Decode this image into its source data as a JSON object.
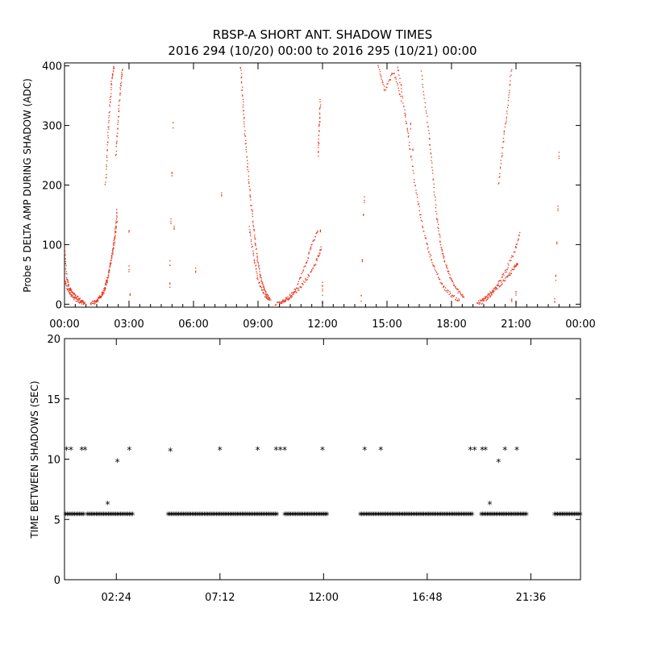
{
  "title_line1": "RBSP-A SHORT ANT. SHADOW TIMES",
  "title_line2": "2016 294 (10/20) 00:00 to 2016 295 (10/21) 00:00",
  "colors": {
    "top_series": "#e8341c",
    "bottom_series": "#000000",
    "axes": "#000000",
    "background": "#ffffff"
  },
  "chart_data": [
    {
      "type": "scatter",
      "title": "",
      "ylabel": "Probe 5 DELTA AMP DURING SHADOW (ADC)",
      "xlabel": "",
      "xlim": [
        0,
        24
      ],
      "ylim": [
        -5,
        405
      ],
      "yticks": [
        0,
        100,
        200,
        300,
        400
      ],
      "xticks": [
        0,
        3,
        6,
        9,
        12,
        15,
        18,
        21,
        24
      ],
      "xtick_labels": [
        "00:00",
        "03:00",
        "06:00",
        "09:00",
        "12:00",
        "15:00",
        "18:00",
        "21:00",
        "00:00"
      ],
      "series": [
        {
          "name": "delta amp",
          "segments": [
            [
              [
                0.0,
                95
              ],
              [
                0.1,
                45
              ],
              [
                0.2,
                30
              ],
              [
                0.35,
                20
              ],
              [
                0.55,
                12
              ],
              [
                0.8,
                5
              ],
              [
                0.95,
                2
              ]
            ],
            [
              [
                0.0,
                40
              ],
              [
                0.15,
                25
              ],
              [
                0.35,
                12
              ],
              [
                0.6,
                6
              ],
              [
                0.9,
                2
              ]
            ],
            [
              [
                1.2,
                1
              ],
              [
                1.5,
                5
              ],
              [
                1.8,
                18
              ],
              [
                2.0,
                40
              ],
              [
                2.2,
                80
              ],
              [
                2.35,
                120
              ],
              [
                2.45,
                160
              ]
            ],
            [
              [
                1.4,
                3
              ],
              [
                1.7,
                15
              ],
              [
                1.9,
                30
              ],
              [
                2.1,
                60
              ],
              [
                2.3,
                100
              ],
              [
                2.45,
                140
              ]
            ],
            [
              [
                1.9,
                200
              ],
              [
                2.0,
                270
              ],
              [
                2.1,
                330
              ],
              [
                2.2,
                380
              ],
              [
                2.3,
                400
              ]
            ],
            [
              [
                2.4,
                250
              ],
              [
                2.5,
                310
              ],
              [
                2.6,
                360
              ],
              [
                2.7,
                400
              ]
            ],
            [
              [
                8.2,
                400
              ],
              [
                8.3,
                340
              ],
              [
                8.4,
                280
              ],
              [
                8.55,
                220
              ],
              [
                8.7,
                160
              ],
              [
                8.85,
                110
              ],
              [
                9.0,
                70
              ],
              [
                9.15,
                40
              ],
              [
                9.35,
                20
              ],
              [
                9.55,
                8
              ]
            ],
            [
              [
                8.6,
                130
              ],
              [
                8.8,
                80
              ],
              [
                9.0,
                40
              ],
              [
                9.3,
                15
              ],
              [
                9.6,
                5
              ]
            ],
            [
              [
                9.8,
                1
              ],
              [
                10.2,
                5
              ],
              [
                10.6,
                15
              ],
              [
                11.0,
                30
              ],
              [
                11.4,
                50
              ],
              [
                11.75,
                75
              ],
              [
                11.95,
                95
              ]
            ],
            [
              [
                10.0,
                2
              ],
              [
                10.4,
                10
              ],
              [
                10.8,
                30
              ],
              [
                11.2,
                65
              ],
              [
                11.5,
                100
              ],
              [
                11.8,
                125
              ]
            ],
            [
              [
                11.8,
                250
              ],
              [
                11.85,
                300
              ],
              [
                11.9,
                345
              ]
            ],
            [
              [
                15.5,
                400
              ],
              [
                15.8,
                330
              ],
              [
                16.0,
                280
              ],
              [
                16.3,
                200
              ],
              [
                16.6,
                140
              ],
              [
                16.9,
                95
              ],
              [
                17.2,
                60
              ],
              [
                17.6,
                30
              ],
              [
                18.0,
                15
              ],
              [
                18.4,
                5
              ]
            ],
            [
              [
                16.6,
                390
              ],
              [
                16.9,
                300
              ],
              [
                17.1,
                230
              ],
              [
                17.3,
                150
              ],
              [
                17.5,
                100
              ],
              [
                17.7,
                70
              ],
              [
                18.0,
                40
              ],
              [
                18.3,
                22
              ],
              [
                18.6,
                10
              ]
            ],
            [
              [
                14.6,
                400
              ],
              [
                14.9,
                360
              ],
              [
                15.3,
                390
              ],
              [
                15.7,
                340
              ]
            ],
            [
              [
                19.2,
                1
              ],
              [
                19.5,
                8
              ],
              [
                19.8,
                18
              ],
              [
                20.2,
                30
              ],
              [
                20.6,
                45
              ],
              [
                20.9,
                60
              ],
              [
                21.1,
                70
              ]
            ],
            [
              [
                19.4,
                3
              ],
              [
                19.8,
                15
              ],
              [
                20.1,
                30
              ],
              [
                20.5,
                55
              ],
              [
                20.9,
                85
              ],
              [
                21.2,
                120
              ]
            ],
            [
              [
                20.2,
                200
              ],
              [
                20.4,
                270
              ],
              [
                20.6,
                330
              ],
              [
                20.8,
                400
              ]
            ]
          ],
          "points": [
            [
              4.9,
              30
            ],
            [
              4.9,
              70
            ],
            [
              4.95,
              140
            ],
            [
              5.0,
              220
            ],
            [
              5.05,
              300
            ],
            [
              5.1,
              130
            ],
            [
              6.1,
              55
            ],
            [
              3.0,
              120
            ],
            [
              3.0,
              60
            ],
            [
              3.05,
              20
            ],
            [
              7.3,
              185
            ],
            [
              12.0,
              5
            ],
            [
              12.0,
              20
            ],
            [
              12.0,
              35
            ],
            [
              11.9,
              120
            ],
            [
              13.8,
              10
            ],
            [
              13.85,
              70
            ],
            [
              13.9,
              150
            ],
            [
              13.95,
              175
            ],
            [
              16.1,
              300
            ],
            [
              16.2,
              260
            ],
            [
              22.8,
              5
            ],
            [
              22.85,
              45
            ],
            [
              22.9,
              100
            ],
            [
              22.95,
              160
            ],
            [
              23.0,
              250
            ],
            [
              21.0,
              5
            ],
            [
              21.0,
              20
            ],
            [
              20.8,
              5
            ]
          ]
        }
      ]
    },
    {
      "type": "scatter",
      "title": "",
      "ylabel": "TIME BETWEEN SHADOWS (SEC)",
      "xlabel": "",
      "xlim": [
        0,
        23.9
      ],
      "ylim": [
        0,
        20
      ],
      "yticks": [
        0,
        5,
        10,
        15,
        20
      ],
      "xticks": [
        2.4,
        7.2,
        12.0,
        16.8,
        21.6
      ],
      "xtick_labels": [
        "02:24",
        "07:12",
        "12:00",
        "16:48",
        "21:36"
      ],
      "series": [
        {
          "name": "interval",
          "marker": "*",
          "bands": [
            [
              0.05,
              0.95,
              5.4
            ],
            [
              1.05,
              3.2,
              5.4
            ],
            [
              4.8,
              9.9,
              5.4
            ],
            [
              10.2,
              12.2,
              5.4
            ],
            [
              13.7,
              18.9,
              5.4
            ],
            [
              19.3,
              21.4,
              5.4
            ],
            [
              22.7,
              23.9,
              5.4
            ]
          ],
          "points": [
            [
              0.1,
              10.8
            ],
            [
              0.3,
              10.8
            ],
            [
              0.8,
              10.8
            ],
            [
              0.95,
              10.8
            ],
            [
              2.0,
              6.3
            ],
            [
              2.45,
              9.8
            ],
            [
              3.0,
              10.8
            ],
            [
              4.9,
              10.7
            ],
            [
              7.2,
              10.8
            ],
            [
              8.95,
              10.8
            ],
            [
              9.8,
              10.8
            ],
            [
              10.0,
              10.8
            ],
            [
              10.2,
              10.8
            ],
            [
              11.95,
              10.8
            ],
            [
              13.9,
              10.8
            ],
            [
              14.65,
              10.8
            ],
            [
              18.8,
              10.8
            ],
            [
              19.0,
              10.8
            ],
            [
              19.35,
              10.8
            ],
            [
              19.5,
              10.8
            ],
            [
              19.7,
              6.3
            ],
            [
              20.1,
              9.8
            ],
            [
              20.4,
              10.8
            ],
            [
              20.95,
              10.8
            ]
          ]
        }
      ]
    }
  ]
}
